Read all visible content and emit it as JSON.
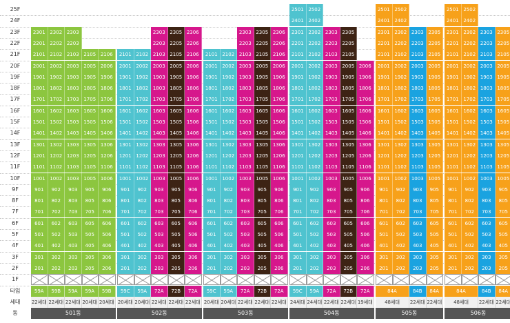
{
  "floor_labels": [
    "25F",
    "24F",
    "23F",
    "22F",
    "21F",
    "20F",
    "19F",
    "18F",
    "17F",
    "16F",
    "15F",
    "14F",
    "13F",
    "12F",
    "11F",
    "10F",
    "9F",
    "8F",
    "7F",
    "6F",
    "5F",
    "4F",
    "3F",
    "2F",
    "1F",
    "타입",
    "세대",
    "동"
  ],
  "colors": {
    "green": "#8cc63f",
    "cyan": "#4fc3cf",
    "magenta": "#d6178c",
    "brown": "#3d2314",
    "orange": "#f7a11a",
    "blue": "#1aa3e0"
  },
  "buildings": [
    {
      "name": "501동",
      "lines": [
        {
          "line": 1,
          "color": "green",
          "top": 23,
          "type": "59A",
          "house": "22세대"
        },
        {
          "line": 2,
          "color": "green",
          "top": 23,
          "type": "59B",
          "house": "22세대"
        },
        {
          "line": 3,
          "color": "green",
          "top": 23,
          "type": "59A",
          "house": "22세대"
        },
        {
          "line": 5,
          "color": "green",
          "top": 21,
          "type": "59A",
          "house": "20세대"
        },
        {
          "line": 6,
          "color": "green",
          "top": 21,
          "type": "59B",
          "house": "20세대"
        }
      ]
    },
    {
      "name": "502동",
      "lines": [
        {
          "line": 1,
          "color": "cyan",
          "top": 21,
          "type": "59C",
          "house": "20세대"
        },
        {
          "line": 2,
          "color": "cyan",
          "top": 21,
          "type": "59A",
          "house": "20세대"
        },
        {
          "line": 3,
          "color": "magenta",
          "top": 23,
          "type": "72A",
          "house": "22세대"
        },
        {
          "line": 5,
          "color": "brown",
          "top": 23,
          "type": "72B",
          "house": "22세대"
        },
        {
          "line": 6,
          "color": "magenta",
          "top": 23,
          "type": "72A",
          "house": "22세대"
        }
      ]
    },
    {
      "name": "503동",
      "lines": [
        {
          "line": 1,
          "color": "cyan",
          "top": 21,
          "type": "59C",
          "house": "20세대"
        },
        {
          "line": 2,
          "color": "cyan",
          "top": 21,
          "type": "59A",
          "house": "20세대"
        },
        {
          "line": 3,
          "color": "magenta",
          "top": 23,
          "type": "72A",
          "house": "22세대"
        },
        {
          "line": 5,
          "color": "brown",
          "top": 23,
          "type": "72B",
          "house": "22세대"
        },
        {
          "line": 6,
          "color": "magenta",
          "top": 23,
          "type": "72A",
          "house": "22세대"
        }
      ]
    },
    {
      "name": "504동",
      "lines": [
        {
          "line": 1,
          "color": "cyan",
          "top": 25,
          "type": "59C",
          "house": "24세대"
        },
        {
          "line": 2,
          "color": "cyan",
          "top": 25,
          "type": "59A",
          "house": "24세대"
        },
        {
          "line": 3,
          "color": "magenta",
          "top": 23,
          "type": "72A",
          "house": "22세대"
        },
        {
          "line": 5,
          "color": "brown",
          "top": 23,
          "type": "72B",
          "house": "22세대"
        },
        {
          "line": 6,
          "color": "magenta",
          "top": 20,
          "type": "72A",
          "house": "19세대"
        }
      ]
    },
    {
      "name": "505동",
      "lines": [
        {
          "line": 1,
          "color": "orange",
          "top": 25,
          "type": "84A",
          "house": "48세대",
          "pair": true
        },
        {
          "line": 2,
          "color": "orange",
          "top": 25,
          "type": "",
          "house": "",
          "pairTail": true
        },
        {
          "line": 3,
          "color": "blue",
          "top": 23,
          "type": "84B",
          "house": "22세대"
        },
        {
          "line": 5,
          "color": "orange",
          "top": 23,
          "type": "84A",
          "house": "22세대"
        }
      ]
    },
    {
      "name": "506동",
      "lines": [
        {
          "line": 1,
          "color": "orange",
          "top": 25,
          "type": "84A",
          "house": "48세대",
          "pair": true
        },
        {
          "line": 2,
          "color": "orange",
          "top": 25,
          "type": "",
          "house": "",
          "pairTail": true
        },
        {
          "line": 3,
          "color": "blue",
          "top": 23,
          "type": "84B",
          "house": "22세대"
        },
        {
          "line": 5,
          "color": "orange",
          "top": 23,
          "type": "84A",
          "house": "22세대"
        }
      ]
    }
  ]
}
